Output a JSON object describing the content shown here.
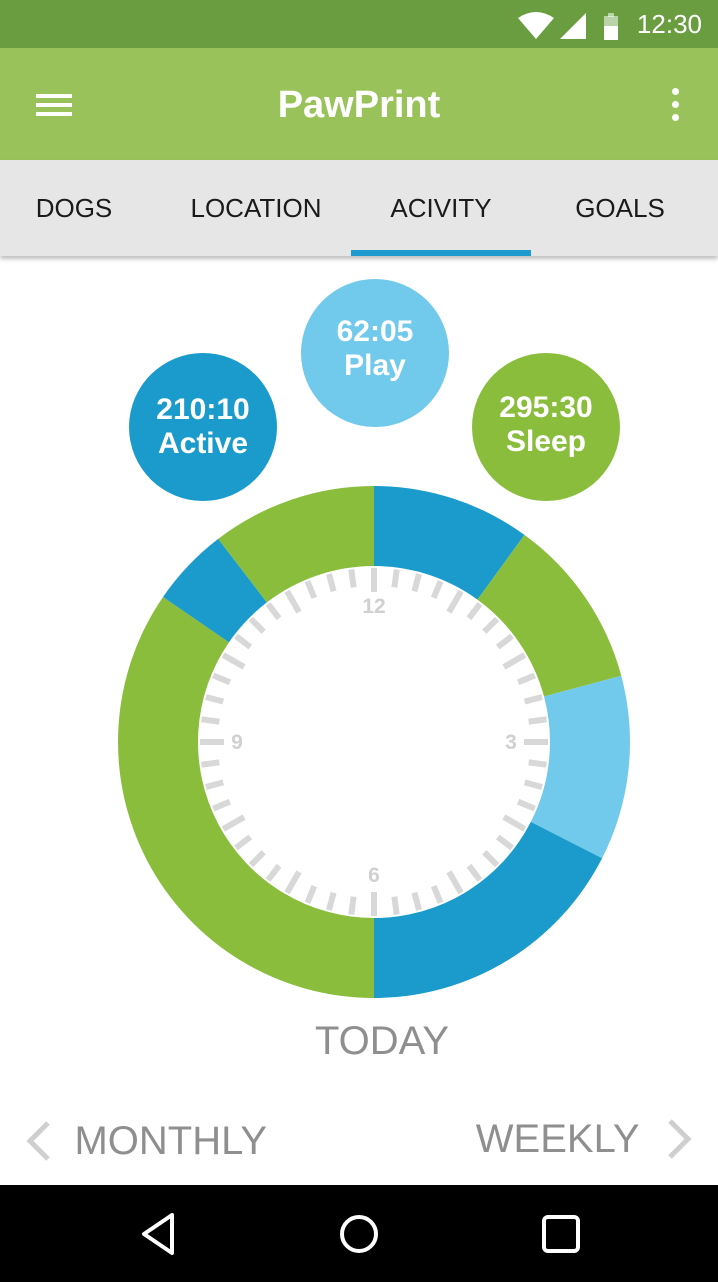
{
  "status": {
    "time": "12:30",
    "icons": [
      "wifi-icon",
      "cell-signal-icon",
      "battery-icon"
    ]
  },
  "app": {
    "title": "PawPrint",
    "menu_icon": "hamburger-menu-icon",
    "overflow_icon": "more-vert-icon"
  },
  "tabs": [
    {
      "label": "DOGS",
      "selected": false
    },
    {
      "label": "LOCATION",
      "selected": false
    },
    {
      "label": "ACIVITY",
      "selected": true
    },
    {
      "label": "GOALS",
      "selected": false
    }
  ],
  "summary": {
    "active": {
      "value": "210:10",
      "label": "Active"
    },
    "play": {
      "value": "62:05",
      "label": "Play"
    },
    "sleep": {
      "value": "295:30",
      "label": "Sleep"
    }
  },
  "colors": {
    "active": "#1a9bcc",
    "play": "#71c9eb",
    "sleep": "#8bbd3d",
    "header": "#9ac25a",
    "status_bar": "#699d3f",
    "tab_indicator": "#1e9bce"
  },
  "clock": {
    "hour_labels": {
      "12": "12",
      "3": "3",
      "6": "6",
      "9": "9"
    },
    "segments": [
      {
        "activity": "active",
        "start_hour": 0,
        "end_hour": 1.2
      },
      {
        "activity": "sleep",
        "start_hour": 1.2,
        "end_hour": 2.5
      },
      {
        "activity": "play",
        "start_hour": 2.5,
        "end_hour": 3.9
      },
      {
        "activity": "active",
        "start_hour": 3.9,
        "end_hour": 6
      },
      {
        "activity": "sleep",
        "start_hour": 6,
        "end_hour": 10.15
      },
      {
        "activity": "active",
        "start_hour": 10.15,
        "end_hour": 10.75
      },
      {
        "activity": "sleep",
        "start_hour": 10.75,
        "end_hour": 12
      }
    ]
  },
  "period": {
    "current": "TODAY",
    "previous": "MONTHLY",
    "next": "WEEKLY"
  },
  "system_nav": [
    "back-icon",
    "home-icon",
    "recents-icon"
  ]
}
